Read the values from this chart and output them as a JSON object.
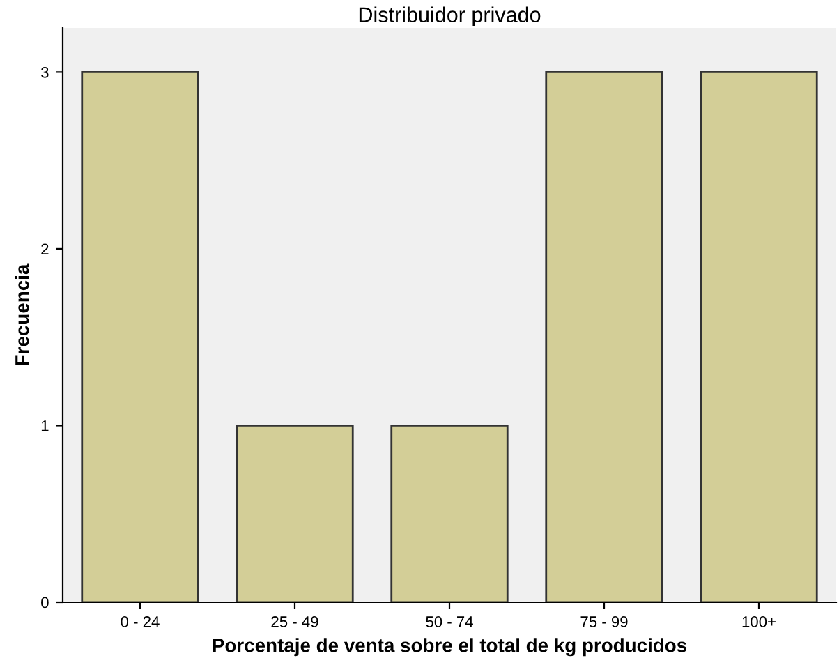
{
  "chart_data": {
    "type": "bar",
    "title": "Distribuidor privado",
    "xlabel": "Porcentaje de venta sobre el total de kg producidos",
    "ylabel": "Frecuencia",
    "categories": [
      "0 - 24",
      "25 - 49",
      "50 - 74",
      "75 - 99",
      "100+"
    ],
    "values": [
      3,
      1,
      1,
      3,
      3
    ],
    "color": "#d3ce97",
    "ylim": [
      0,
      3.25
    ],
    "yticks": [
      0,
      1,
      2,
      3
    ],
    "grid": false
  }
}
